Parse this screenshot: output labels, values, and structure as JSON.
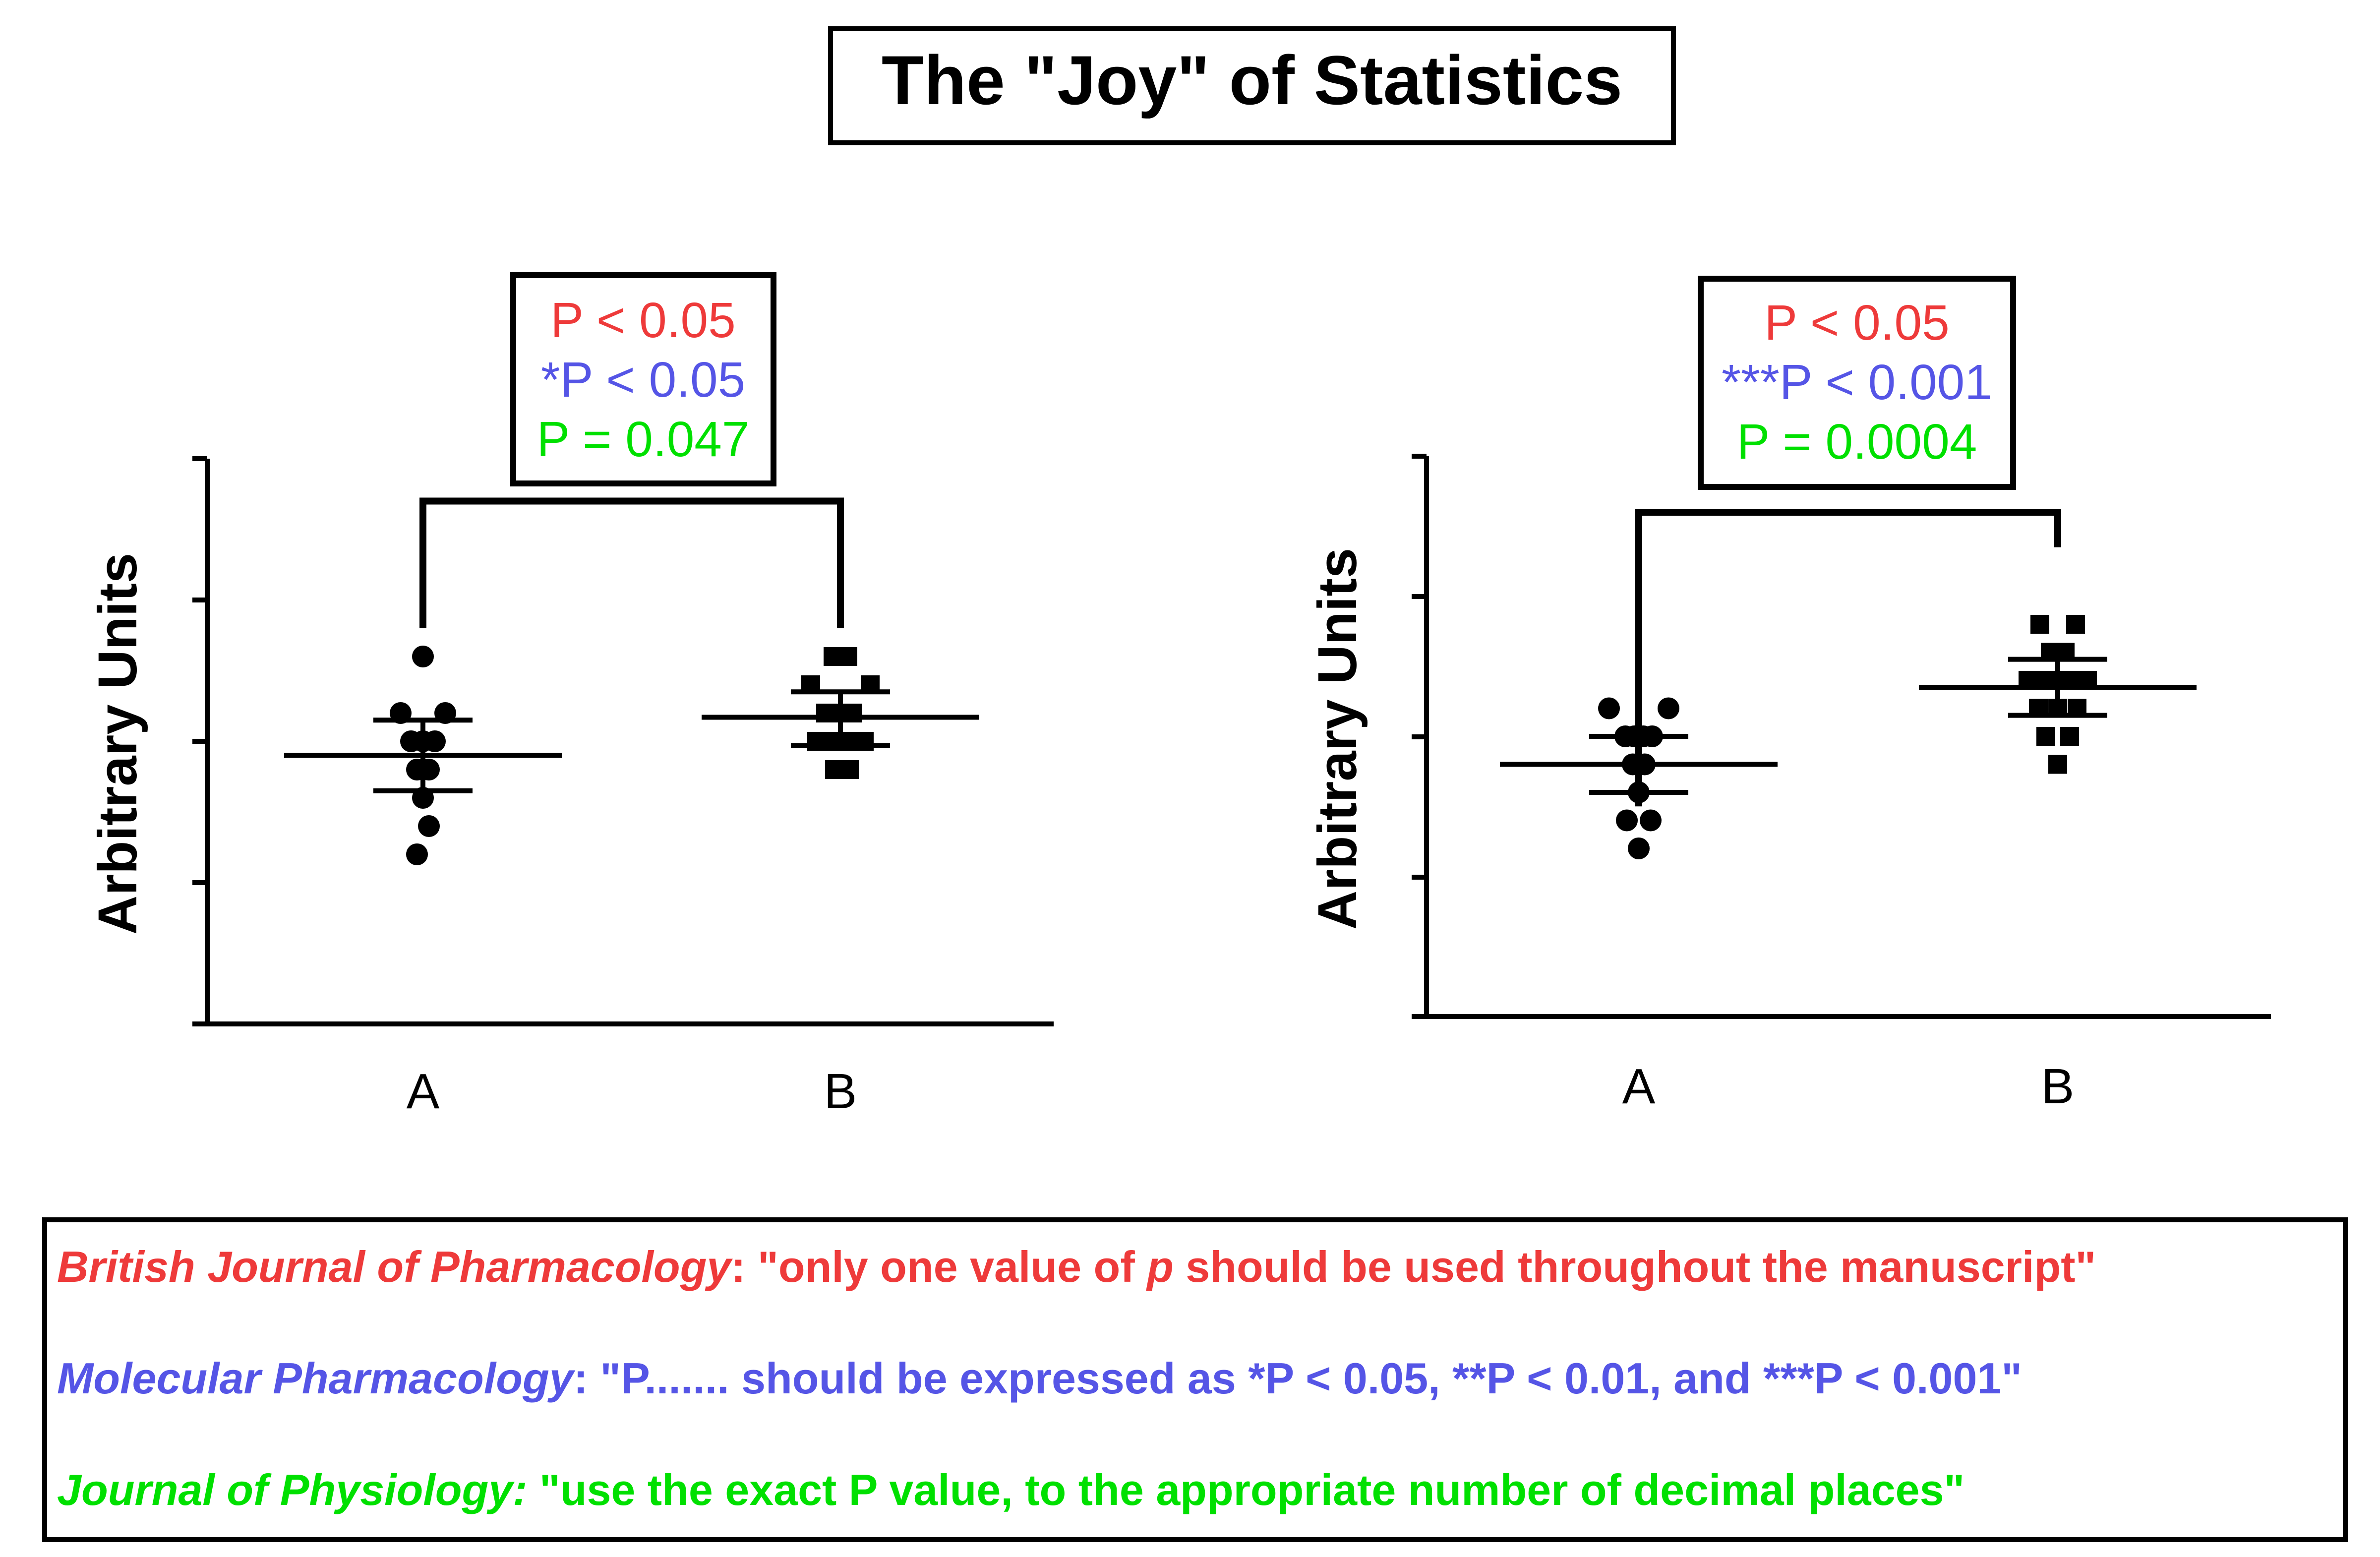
{
  "title": "The \"Joy\" of Statistics",
  "colors": {
    "journal_1": "#ee3a3a",
    "journal_2": "#5555e6",
    "journal_3": "#00e000",
    "ink": "#000000"
  },
  "chart_data": [
    {
      "type": "scatter",
      "ylabel": "Arbitrary Units",
      "xlabel": "",
      "ylim": [
        0,
        4
      ],
      "grid": false,
      "categories": [
        "A",
        "B"
      ],
      "series": [
        {
          "category": "A",
          "marker": "circle",
          "points": [
            {
              "x": 0,
              "y": 2.6
            },
            {
              "x": -0.15,
              "y": 2.2
            },
            {
              "x": 0.15,
              "y": 2.2
            },
            {
              "x": -0.08,
              "y": 2.0
            },
            {
              "x": 0.0,
              "y": 2.0
            },
            {
              "x": 0.08,
              "y": 2.0
            },
            {
              "x": -0.04,
              "y": 1.8
            },
            {
              "x": 0.04,
              "y": 1.8
            },
            {
              "x": 0.0,
              "y": 1.6
            },
            {
              "x": 0.04,
              "y": 1.4
            },
            {
              "x": -0.04,
              "y": 1.2
            }
          ],
          "mean": 1.9,
          "sem_low": 1.65,
          "sem_high": 2.15
        },
        {
          "category": "B",
          "marker": "square",
          "points": [
            {
              "x": -0.05,
              "y": 2.6
            },
            {
              "x": 0.05,
              "y": 2.6
            },
            {
              "x": -0.2,
              "y": 2.4
            },
            {
              "x": 0.2,
              "y": 2.4
            },
            {
              "x": -0.1,
              "y": 2.2
            },
            {
              "x": 0.0,
              "y": 2.2
            },
            {
              "x": 0.08,
              "y": 2.2
            },
            {
              "x": -0.16,
              "y": 2.0
            },
            {
              "x": -0.06,
              "y": 2.0
            },
            {
              "x": 0.04,
              "y": 2.0
            },
            {
              "x": 0.16,
              "y": 2.0
            },
            {
              "x": -0.04,
              "y": 1.8
            },
            {
              "x": 0.06,
              "y": 1.8
            }
          ],
          "mean": 2.17,
          "sem_low": 1.97,
          "sem_high": 2.35
        }
      ],
      "significance": {
        "left_y": 2.8,
        "right_y": 2.8,
        "top_y": 3.7,
        "labels": [
          "P < 0.05",
          "*P < 0.05",
          "P = 0.047"
        ]
      }
    },
    {
      "type": "scatter",
      "ylabel": "Arbitrary Units",
      "xlabel": "",
      "ylim": [
        0,
        4
      ],
      "grid": false,
      "categories": [
        "A",
        "B"
      ],
      "series": [
        {
          "category": "A",
          "marker": "circle",
          "points": [
            {
              "x": -0.2,
              "y": 2.2
            },
            {
              "x": 0.2,
              "y": 2.2
            },
            {
              "x": -0.09,
              "y": 2.0
            },
            {
              "x": -0.03,
              "y": 2.0
            },
            {
              "x": 0.03,
              "y": 2.0
            },
            {
              "x": 0.09,
              "y": 2.0
            },
            {
              "x": -0.04,
              "y": 1.8
            },
            {
              "x": 0.04,
              "y": 1.8
            },
            {
              "x": 0.0,
              "y": 1.6
            },
            {
              "x": -0.08,
              "y": 1.4
            },
            {
              "x": 0.08,
              "y": 1.4
            },
            {
              "x": 0.0,
              "y": 1.2
            }
          ],
          "mean": 1.8,
          "sem_low": 1.6,
          "sem_high": 2.0
        },
        {
          "category": "B",
          "marker": "square",
          "points": [
            {
              "x": -0.12,
              "y": 2.8
            },
            {
              "x": 0.12,
              "y": 2.8
            },
            {
              "x": -0.05,
              "y": 2.6
            },
            {
              "x": 0.05,
              "y": 2.6
            },
            {
              "x": -0.2,
              "y": 2.4
            },
            {
              "x": -0.08,
              "y": 2.4
            },
            {
              "x": 0.08,
              "y": 2.4
            },
            {
              "x": 0.2,
              "y": 2.4
            },
            {
              "x": -0.13,
              "y": 2.2
            },
            {
              "x": 0.0,
              "y": 2.2
            },
            {
              "x": 0.13,
              "y": 2.2
            },
            {
              "x": -0.08,
              "y": 2.0
            },
            {
              "x": 0.08,
              "y": 2.0
            },
            {
              "x": 0.0,
              "y": 1.8
            }
          ],
          "mean": 2.35,
          "sem_low": 2.15,
          "sem_high": 2.55
        }
      ],
      "significance": {
        "left_y": 1.5,
        "right_y": 3.35,
        "top_y": 3.6,
        "labels": [
          "P < 0.05",
          "***P < 0.001",
          "P = 0.0004"
        ]
      }
    }
  ],
  "footer": {
    "line1": {
      "journal": "British Journal of Pharmacology",
      "pre": ": \"only one value of ",
      "emph": "p",
      "post": " should be used throughout the manuscript\""
    },
    "line2": {
      "journal": "Molecular Pharmacology",
      "quote": ": \"P....... should be expressed as *P < 0.05, **P < 0.01, and ***P < 0.001\""
    },
    "line3": {
      "journal": "Journal of Physiology:",
      "quote": " \"use the exact P value, to the appropriate number of decimal places\""
    }
  }
}
